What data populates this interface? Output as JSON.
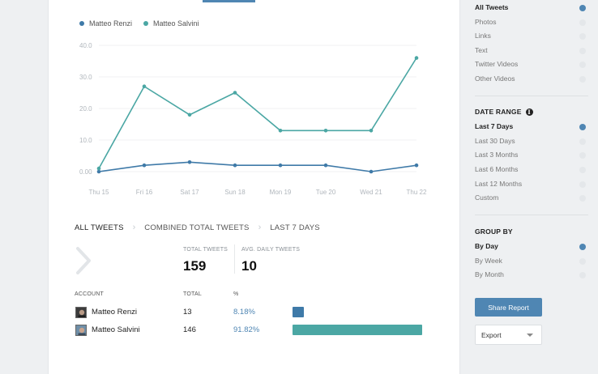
{
  "chart_data": {
    "type": "line",
    "categories": [
      "Thu 15",
      "Fri 16",
      "Sat 17",
      "Sun 18",
      "Mon 19",
      "Tue 20",
      "Wed 21",
      "Thu 22"
    ],
    "yticks": [
      "0.00",
      "10.0",
      "20.0",
      "30.0",
      "40.0"
    ],
    "ylim": [
      0,
      40
    ],
    "grid": true,
    "legend_position": "top-left",
    "series": [
      {
        "name": "Matteo Renzi",
        "color": "#3f7aa8",
        "values": [
          0,
          2,
          3,
          2,
          2,
          2,
          0,
          2
        ]
      },
      {
        "name": "Matteo Salvini",
        "color": "#4ba7a4",
        "values": [
          1,
          27,
          18,
          25,
          13,
          13,
          13,
          36
        ]
      }
    ]
  },
  "breadcrumb": [
    "All Tweets",
    "Combined Total Tweets",
    "Last 7 Days"
  ],
  "stats": {
    "total_label": "Total Tweets",
    "total_value": "159",
    "avg_label": "Avg. Daily Tweets",
    "avg_value": "10"
  },
  "table": {
    "headers": {
      "account": "Account",
      "total": "Total",
      "percent": "%"
    },
    "rows": [
      {
        "name": "Matteo Renzi",
        "total": "13",
        "percent": "8.18%",
        "share": 0.0818,
        "color": "#3f7aa8"
      },
      {
        "name": "Matteo Salvini",
        "total": "146",
        "percent": "91.82%",
        "share": 0.9182,
        "color": "#4ba7a4"
      }
    ]
  },
  "sidebar": {
    "content_filters": [
      {
        "label": "All Tweets",
        "selected": true
      },
      {
        "label": "Photos",
        "selected": false
      },
      {
        "label": "Links",
        "selected": false
      },
      {
        "label": "Text",
        "selected": false
      },
      {
        "label": "Twitter Videos",
        "selected": false
      },
      {
        "label": "Other Videos",
        "selected": false
      }
    ],
    "date_range_heading": "Date Range",
    "date_range": [
      {
        "label": "Last 7 Days",
        "selected": true
      },
      {
        "label": "Last 30 Days",
        "selected": false
      },
      {
        "label": "Last 3 Months",
        "selected": false
      },
      {
        "label": "Last 6 Months",
        "selected": false
      },
      {
        "label": "Last 12 Months",
        "selected": false
      },
      {
        "label": "Custom",
        "selected": false
      }
    ],
    "group_by_heading": "Group By",
    "group_by": [
      {
        "label": "By Day",
        "selected": true
      },
      {
        "label": "By Week",
        "selected": false
      },
      {
        "label": "By Month",
        "selected": false
      }
    ],
    "share_label": "Share Report",
    "export_label": "Export"
  },
  "icons": {
    "info": "info-icon",
    "chevron": "chevron-right-icon",
    "caret": "chevron-down-icon"
  },
  "colors": {
    "accent": "#4f86b3"
  }
}
